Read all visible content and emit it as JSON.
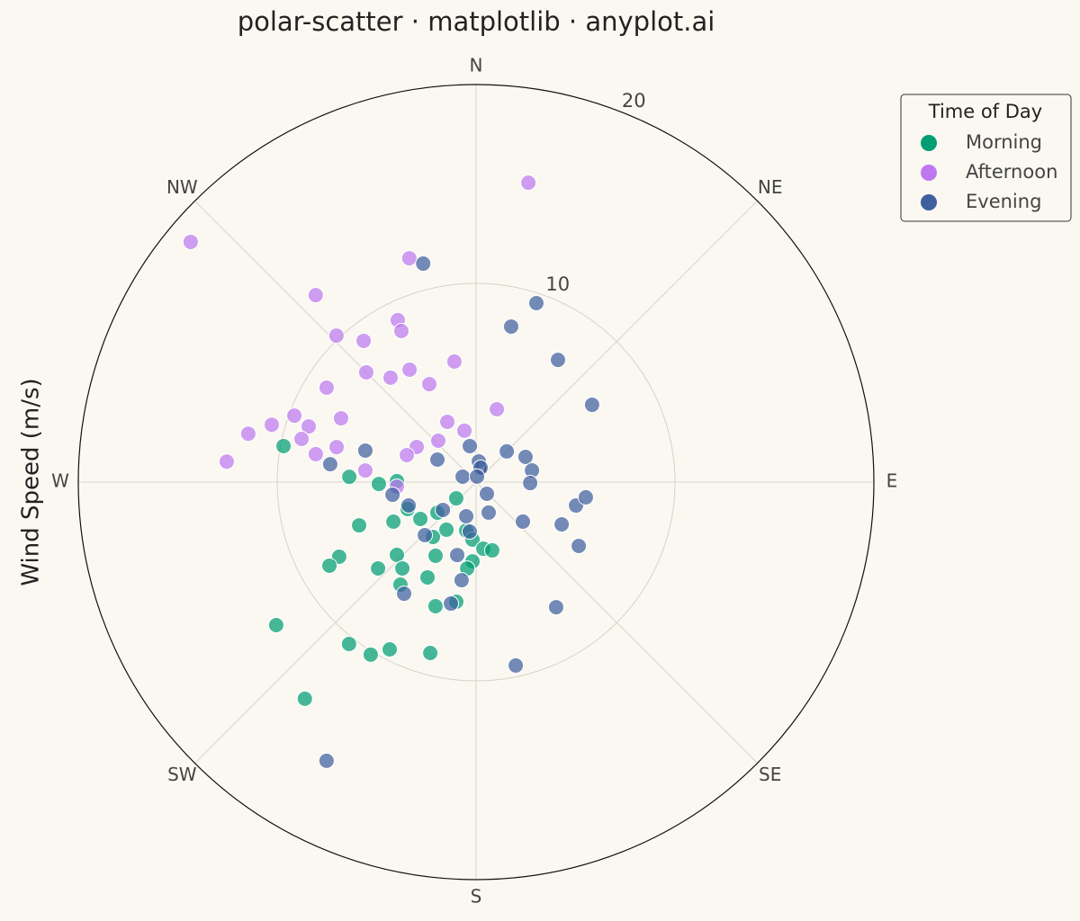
{
  "chart_data": {
    "type": "scatter",
    "polar": true,
    "theta_direction": "clockwise",
    "title": "polar-scatter · matplotlib · anyplot.ai",
    "ylabel": "Wind Speed (m/s)",
    "xlim": [
      0,
      360
    ],
    "xticks": [
      {
        "value": 0,
        "label": "N"
      },
      {
        "value": 45,
        "label": "NE"
      },
      {
        "value": 90,
        "label": "E"
      },
      {
        "value": 135,
        "label": "SE"
      },
      {
        "value": 180,
        "label": "S"
      },
      {
        "value": 225,
        "label": "SW"
      },
      {
        "value": 270,
        "label": "W"
      },
      {
        "value": 315,
        "label": "NW"
      }
    ],
    "ylim": [
      0,
      20
    ],
    "yticks": [
      0,
      10,
      20
    ],
    "grid": true,
    "legend_title": "Time of Day",
    "legend_position": "upper right",
    "series": [
      {
        "name": "Morning",
        "color": "#009E73",
        "x": [
          280.6,
          272.4,
          268.9,
          270.7,
          249.7,
          244.4,
          248.5,
          236.5,
          231.7,
          218.2,
          211.9,
          230.7,
          191.5,
          183.6,
          173.8,
          166.7,
          182.6,
          185.9,
          208.8,
          207.0,
          227.4,
          220.5,
          228.6,
          241.4,
          240.3,
          216.4,
          198.1,
          189.4,
          234.4,
          218.1,
          211.4,
          207.3,
          195.0,
          218.3
        ],
        "values": [
          9.85,
          6.38,
          4.89,
          3.98,
          6.27,
          4.61,
          3.7,
          3.36,
          2.48,
          3.51,
          2.82,
          1.29,
          2.49,
          2.9,
          3.37,
          3.53,
          3.99,
          4.37,
          4.23,
          5.38,
          5.41,
          5.71,
          6.57,
          7.84,
          8.49,
          6.41,
          6.57,
          6.1,
          12.36,
          10.35,
          10.17,
          9.47,
          8.9,
          13.89
        ]
      },
      {
        "name": "Afternoon",
        "color": "#BD78F0",
        "x": [
          310.1,
          9.9,
          343.4,
          319.4,
          334.2,
          316.4,
          321.5,
          349.8,
          315.0,
          329.4,
          320.7,
          334.5,
          302.3,
          15.9,
          295.3,
          290.1,
          285.7,
          288.4,
          282.0,
          334.5,
          347.2,
          283.9,
          284.1,
          279.9,
          274.7,
          317.6,
          300.6,
          291.3,
          276.0,
          266.7,
          333.7
        ],
        "values": [
          18.76,
          15.29,
          11.75,
          12.39,
          9.05,
          10.18,
          9.08,
          6.16,
          7.81,
          6.57,
          6.79,
          5.46,
          8.89,
          3.81,
          7.51,
          9.73,
          10.67,
          8.87,
          11.71,
          3.36,
          2.65,
          9.04,
          7.23,
          8.18,
          12.58,
          2.82,
          3.47,
          3.74,
          5.6,
          3.99,
          8.48
        ]
      },
      {
        "name": "Evening",
        "color": "#3F5F9F",
        "x": [
          346.4,
          18.6,
          12.7,
          33.8,
          56.3,
          350.1,
          45.0,
          63.0,
          78.2,
          91.0,
          285.9,
          277.0,
          300.2,
          291.8,
          7.4,
          17.4,
          9.5,
          137.3,
          261.4,
          250.9,
          230.0,
          196.1,
          157.6,
          130.2,
          116.3,
          103.2,
          97.9,
          121.9,
          224.0,
          194.5,
          187.3,
          188.4,
          191.7,
          212.8,
          147.4,
          167.8,
          208.2
        ],
        "values": [
          11.31,
          9.5,
          8.02,
          7.4,
          7.01,
          1.84,
          2.18,
          2.79,
          2.87,
          2.72,
          5.79,
          7.39,
          2.25,
          0.73,
          1.05,
          0.76,
          0.28,
          0.8,
          4.25,
          3.59,
          2.18,
          1.79,
          1.66,
          3.08,
          4.8,
          5.16,
          5.57,
          6.08,
          3.71,
          3.79,
          2.51,
          4.99,
          6.24,
          6.68,
          7.47,
          9.44,
          15.91
        ]
      }
    ]
  }
}
